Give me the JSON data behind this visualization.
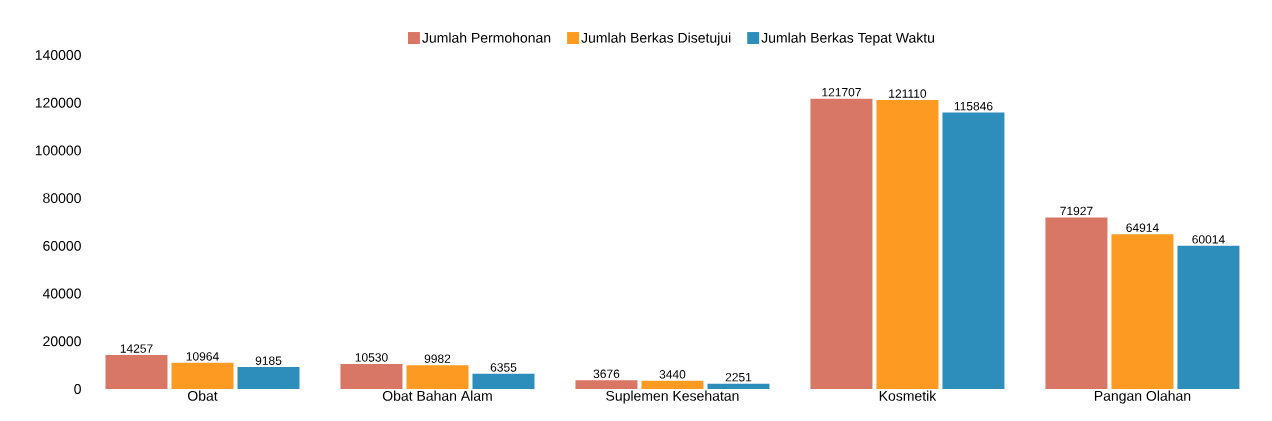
{
  "chart_data": {
    "type": "bar",
    "categories": [
      "Obat",
      "Obat Bahan Alam",
      "Suplemen Kesehatan",
      "Kosmetik",
      "Pangan Olahan"
    ],
    "series": [
      {
        "name": "Jumlah Permohonan",
        "color": "#d97766",
        "values": [
          14257,
          10530,
          3676,
          121707,
          71927
        ]
      },
      {
        "name": "Jumlah Berkas Disetujui",
        "color": "#fc9a22",
        "values": [
          10964,
          9982,
          3440,
          121110,
          64914
        ]
      },
      {
        "name": "Jumlah Berkas Tepat Waktu",
        "color": "#2e8ebb",
        "values": [
          9185,
          6355,
          2251,
          115846,
          60014
        ]
      }
    ],
    "ylim": [
      0,
      140000
    ],
    "yticks": [
      0,
      20000,
      40000,
      60000,
      80000,
      100000,
      120000,
      140000
    ],
    "data_labels": true,
    "grid": false,
    "legend": "top"
  }
}
